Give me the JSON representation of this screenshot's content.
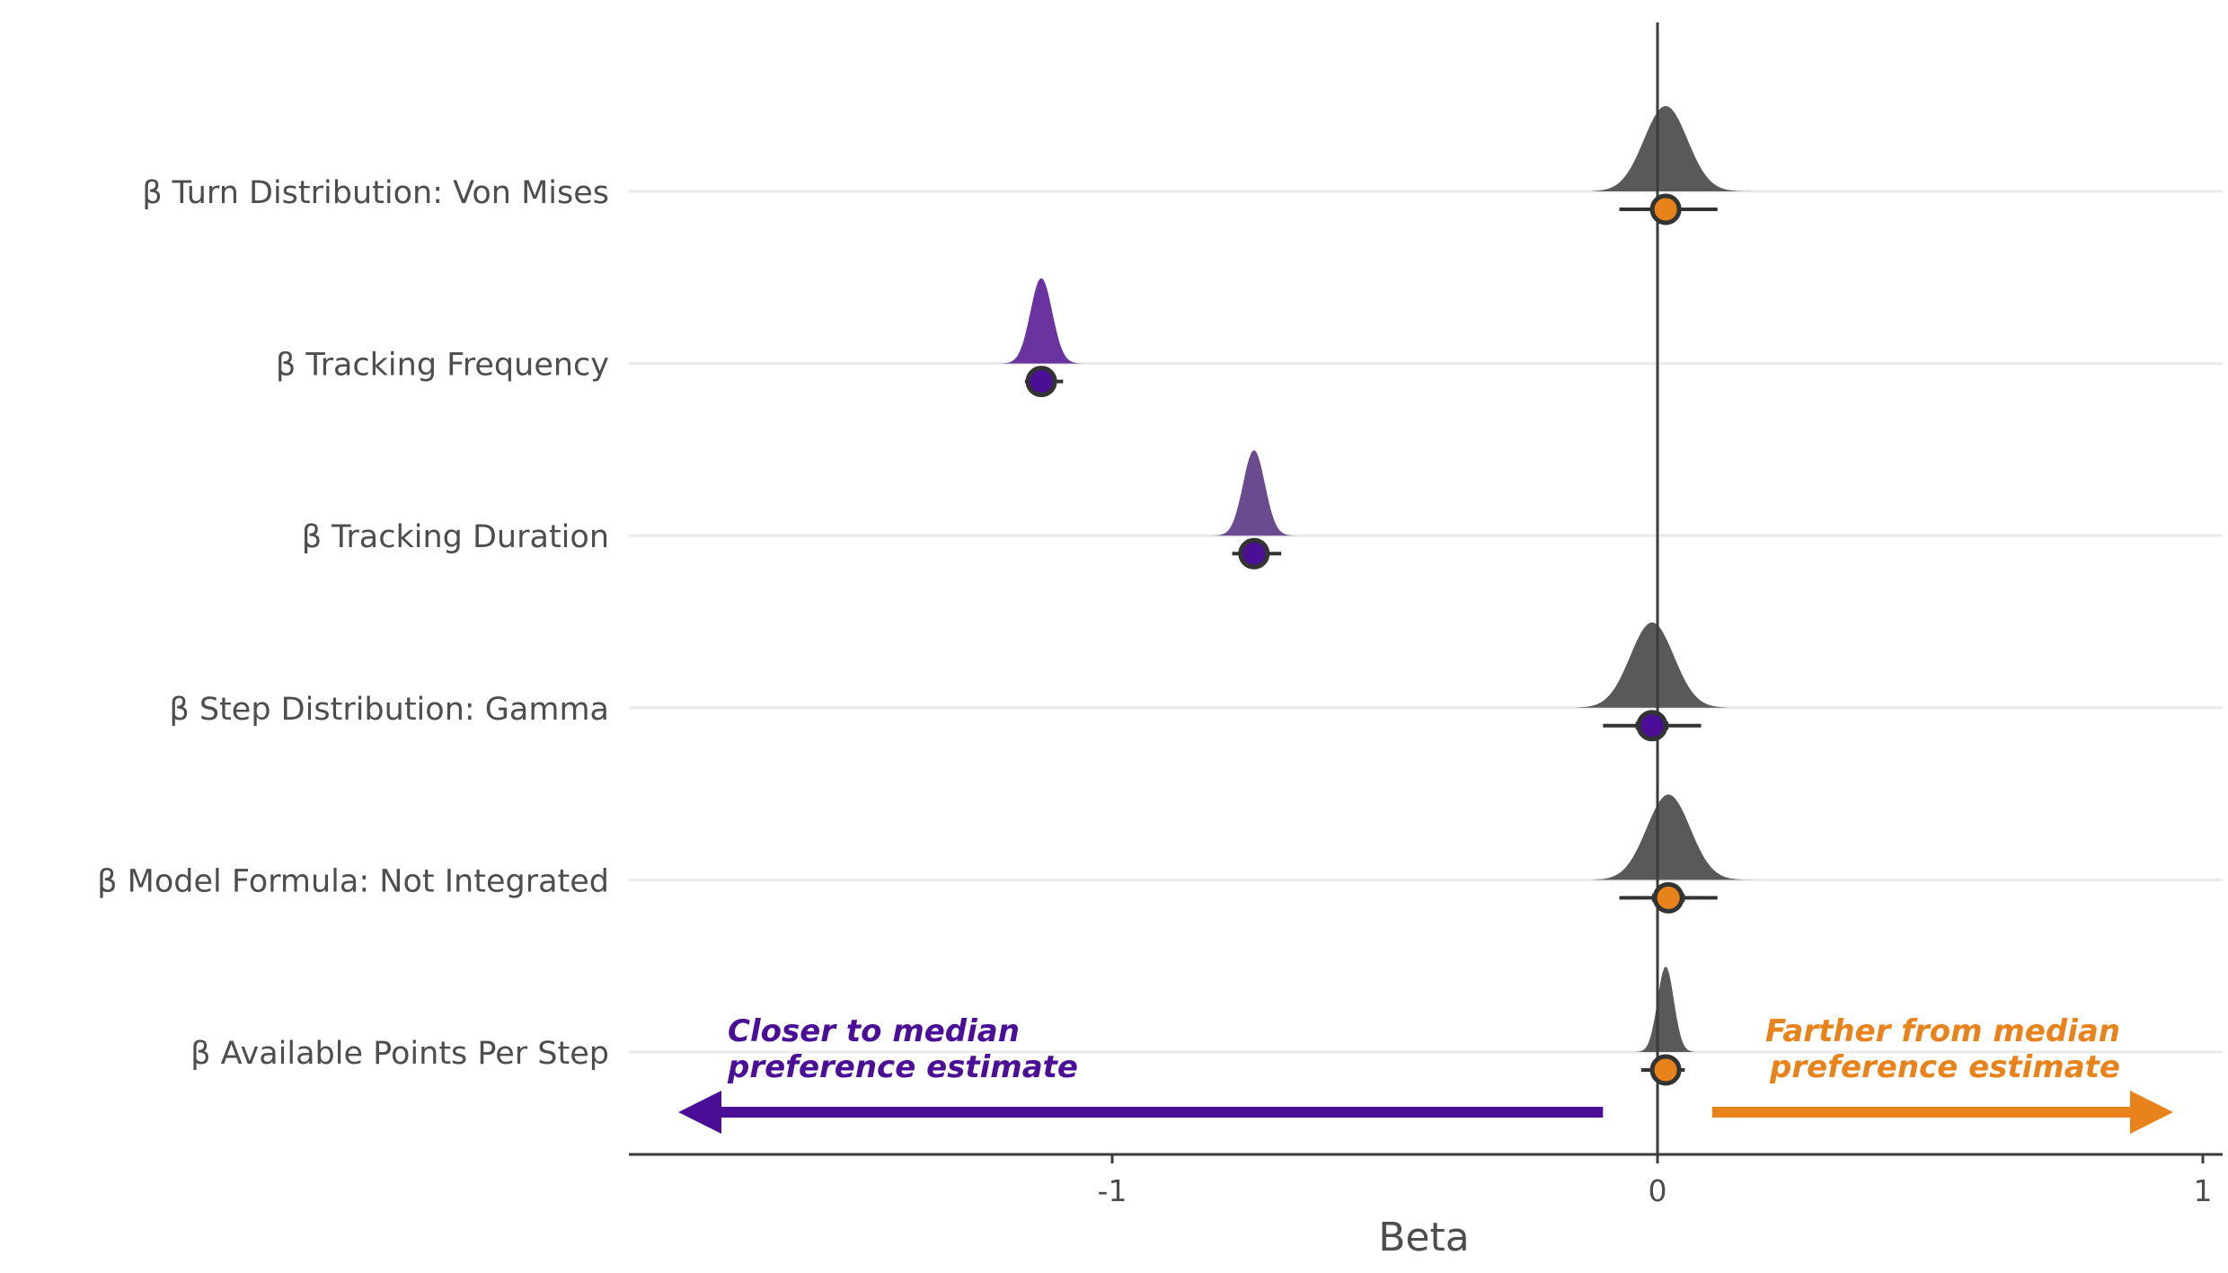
{
  "chart_data": {
    "type": "ridgeline",
    "xlabel": "Beta",
    "xlim": [
      -1.88,
      1.02
    ],
    "x_ticks": [
      {
        "value": -1,
        "label": "-1"
      },
      {
        "value": 0,
        "label": "0"
      },
      {
        "value": 1,
        "label": "1"
      }
    ],
    "reference_line_x": 0,
    "grid": "horizontal",
    "series": [
      {
        "label": "β Turn Distribution: Von Mises",
        "median": 0.015,
        "ci_inner": [
          -0.01,
          0.04
        ],
        "ci_outer": [
          -0.07,
          0.11
        ],
        "density_sd": 0.04,
        "density_range": [
          -0.12,
          0.17
        ],
        "fill": "#595959",
        "point": "#e8831c"
      },
      {
        "label": "β Tracking Frequency",
        "median": -1.13,
        "ci_inner": [
          -1.14,
          -1.12
        ],
        "ci_outer": [
          -1.16,
          -1.09
        ],
        "density_sd": 0.02,
        "density_range": [
          -1.21,
          -1.05
        ],
        "fill": "#6a34a0",
        "point": "#4a0f96"
      },
      {
        "label": "β Tracking Duration",
        "median": -0.74,
        "ci_inner": [
          -0.75,
          -0.73
        ],
        "ci_outer": [
          -0.78,
          -0.69
        ],
        "density_sd": 0.02,
        "density_range": [
          -0.82,
          -0.66
        ],
        "fill": "#6a4b8f",
        "point": "#4a0f96"
      },
      {
        "label": "β Step Distribution: Gamma",
        "median": -0.01,
        "ci_inner": [
          -0.04,
          0.02
        ],
        "ci_outer": [
          -0.1,
          0.08
        ],
        "density_sd": 0.04,
        "density_range": [
          -0.17,
          0.13
        ],
        "fill": "#595959",
        "point": "#4a0f96"
      },
      {
        "label": "β Model Formula: Not Integrated",
        "median": 0.02,
        "ci_inner": [
          -0.01,
          0.05
        ],
        "ci_outer": [
          -0.07,
          0.11
        ],
        "density_sd": 0.04,
        "density_range": [
          -0.12,
          0.19
        ],
        "fill": "#595959",
        "point": "#e8831c"
      },
      {
        "label": "β Available Points Per Step",
        "median": 0.015,
        "ci_inner": [
          0.0,
          0.03
        ],
        "ci_outer": [
          -0.03,
          0.05
        ],
        "density_sd": 0.015,
        "density_range": [
          -0.05,
          0.07
        ],
        "fill": "#595959",
        "point": "#e8831c"
      }
    ],
    "annotations": {
      "left": {
        "line1": "Closer to median",
        "line2": "preference estimate",
        "color": "#4a0f96",
        "arrow_from": -0.1,
        "arrow_to": -1.76
      },
      "right": {
        "line1": "Farther from median",
        "line2": "preference estimate",
        "color": "#e8831c",
        "arrow_from": 0.1,
        "arrow_to": 0.91
      }
    }
  }
}
